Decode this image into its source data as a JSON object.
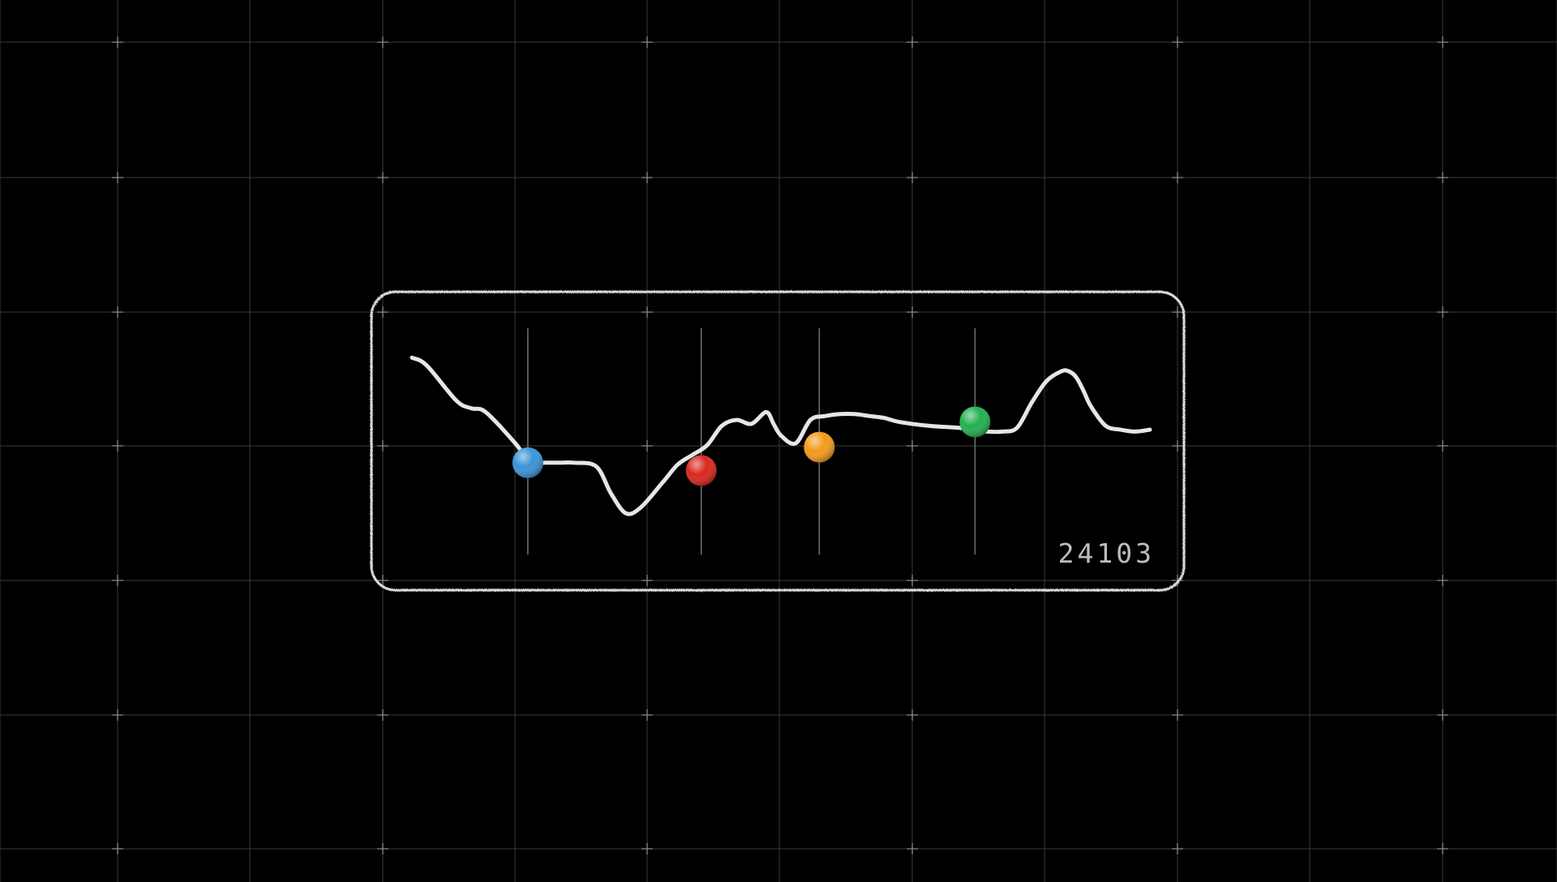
{
  "colors": {
    "background": "#000000",
    "grid": "#3a3a3a",
    "grid_cross": "#8a8a8a",
    "panel_border": "#d8d8d8",
    "curve": "#e6e6e6",
    "marker_line": "#6c6c6c",
    "counter": "#bdbdbd"
  },
  "counter": {
    "value": "24103"
  },
  "chart_data": {
    "type": "line",
    "title": "",
    "xlabel": "",
    "ylabel": "",
    "xlim": [
      0,
      100
    ],
    "ylim": [
      0,
      100
    ],
    "grid": false,
    "series": [
      {
        "x": [
          0,
          2,
          6,
          8,
          10,
          14,
          16,
          18,
          20,
          22,
          25,
          27,
          29,
          31,
          34,
          36,
          38,
          40,
          42,
          44,
          46,
          48,
          49,
          50,
          52,
          54,
          56,
          58,
          60,
          62,
          64,
          66,
          70,
          74,
          76,
          78,
          80,
          82,
          84,
          86,
          88,
          89,
          90,
          91,
          92,
          94,
          96,
          98,
          100
        ],
        "y": [
          92,
          88,
          70,
          66,
          64,
          48,
          38,
          38,
          38,
          38,
          36,
          22,
          12,
          15,
          28,
          37,
          42,
          47,
          57,
          60,
          58,
          64,
          58,
          52,
          48,
          60,
          62,
          63,
          63,
          62,
          61,
          59,
          57,
          56,
          55,
          54,
          54,
          56,
          69,
          80,
          85,
          85,
          82,
          75,
          67,
          57,
          55,
          54,
          55
        ],
        "color": "#e6e6e6"
      }
    ],
    "markers": [
      {
        "x": 15.7,
        "y": 38,
        "color": "#3a93d8"
      },
      {
        "x": 39.2,
        "y": 34,
        "color": "#d9261c"
      },
      {
        "x": 55.2,
        "y": 46,
        "color": "#f39a1a"
      },
      {
        "x": 76.3,
        "y": 59,
        "color": "#21b04e"
      }
    ]
  }
}
